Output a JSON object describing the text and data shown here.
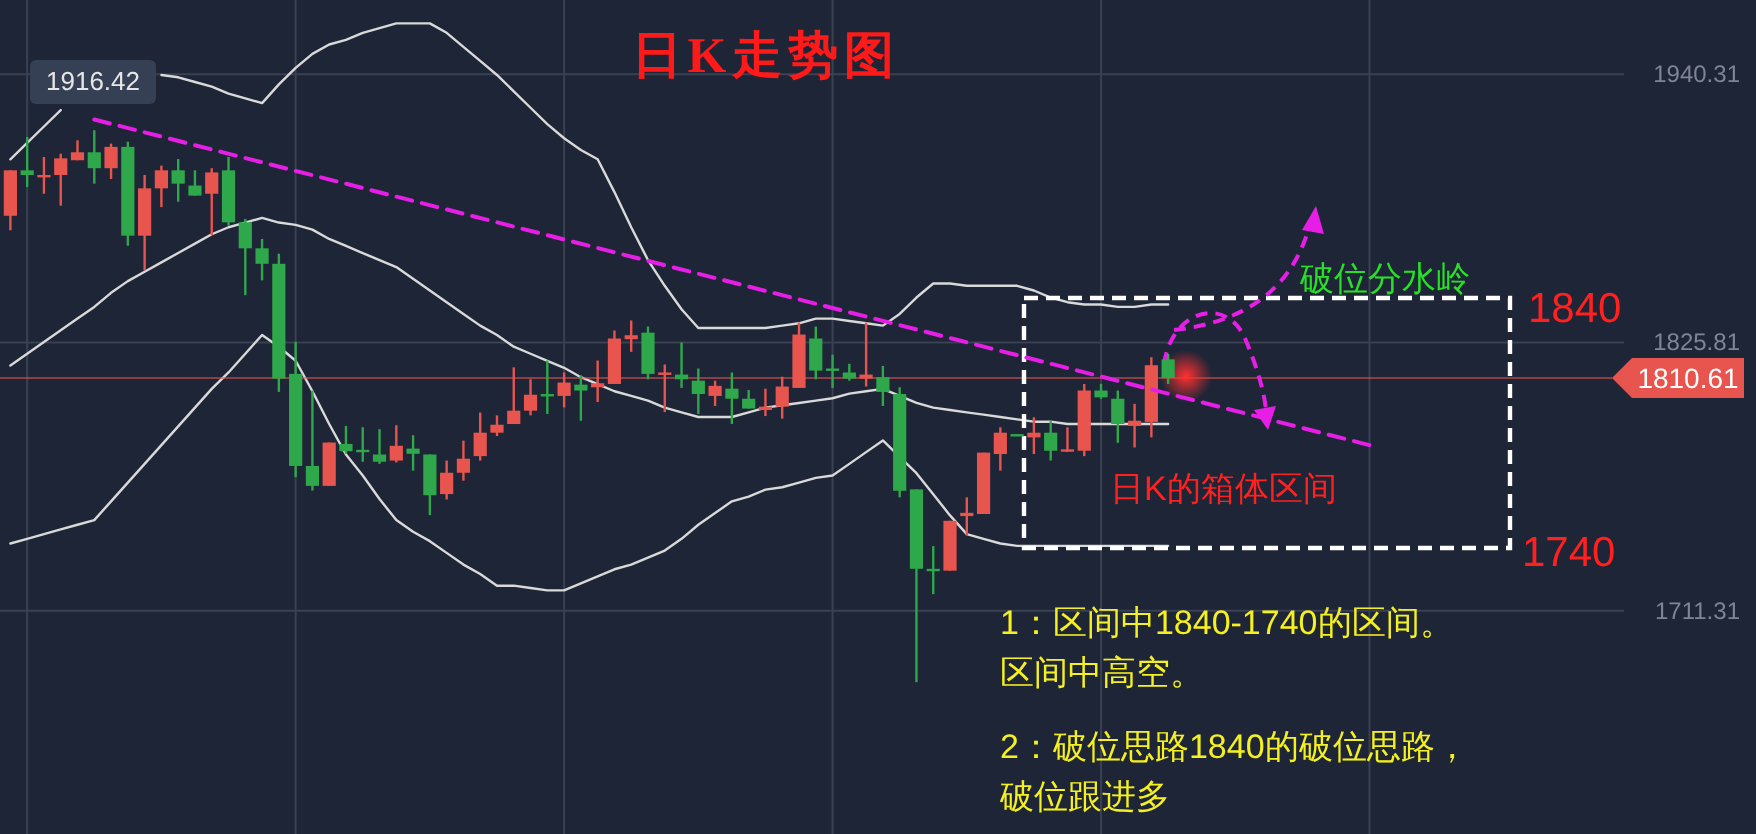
{
  "chart_data": {
    "type": "candlestick",
    "title": "日K走势图",
    "categories": [
      null,
      null,
      null,
      null,
      null,
      null,
      null,
      null,
      null,
      null,
      null,
      null,
      null,
      null,
      null,
      null,
      null,
      null,
      null,
      null,
      null,
      null,
      null,
      null,
      null,
      null,
      null,
      null,
      null,
      null,
      null,
      null,
      null,
      null,
      null,
      null,
      null,
      null,
      null,
      null,
      null,
      null,
      null,
      null,
      null,
      null,
      null,
      null,
      null,
      null,
      null,
      null,
      null,
      null,
      null,
      null,
      null,
      null,
      null,
      null,
      null,
      null,
      null,
      null,
      null,
      null,
      null,
      null,
      null,
      null,
      null,
      null,
      null,
      null,
      null,
      null,
      null,
      null,
      null,
      null,
      null,
      null,
      null,
      null,
      null,
      null,
      null,
      null,
      null,
      null,
      null,
      null,
      null,
      null,
      null
    ],
    "ohlc": [
      [
        1879.9,
        1899.3,
        1873.7,
        1899.3
      ],
      [
        1899.3,
        1913.5,
        1892.2,
        1897.3
      ],
      [
        1897.0,
        1905.0,
        1889.3,
        1897.3
      ],
      [
        1897.3,
        1906.4,
        1884.2,
        1904.4
      ],
      [
        1903.6,
        1912.1,
        1903.6,
        1907.0
      ],
      [
        1907.0,
        1916.4,
        1893.6,
        1900.2
      ],
      [
        1900.2,
        1910.7,
        1895.6,
        1909.3
      ],
      [
        1909.3,
        1911.5,
        1867.1,
        1871.4
      ],
      [
        1871.4,
        1897.3,
        1856.6,
        1891.6
      ],
      [
        1891.6,
        1901.3,
        1883.6,
        1899.3
      ],
      [
        1899.3,
        1904.1,
        1885.9,
        1893.6
      ],
      [
        1892.8,
        1899.3,
        1888.5,
        1888.5
      ],
      [
        1889.3,
        1900.2,
        1871.7,
        1898.4
      ],
      [
        1899.3,
        1905.0,
        1875.7,
        1877.1
      ],
      [
        1877.1,
        1878.5,
        1846.0,
        1866.0
      ],
      [
        1866.0,
        1870.0,
        1852.3,
        1859.4
      ],
      [
        1859.4,
        1863.7,
        1804.7,
        1810.4
      ],
      [
        1812.4,
        1826.1,
        1768.3,
        1773.1
      ],
      [
        1773.1,
        1805.3,
        1762.6,
        1764.6
      ],
      [
        1764.6,
        1783.1,
        1764.6,
        1783.1
      ],
      [
        1782.5,
        1790.2,
        1778.3,
        1779.4
      ],
      [
        1780.0,
        1789.6,
        1774.9,
        1779.4
      ],
      [
        1778.0,
        1788.8,
        1774.0,
        1774.9
      ],
      [
        1775.4,
        1790.5,
        1774.6,
        1781.7
      ],
      [
        1780.5,
        1786.2,
        1771.1,
        1778.3
      ],
      [
        1778.0,
        1778.0,
        1752.1,
        1760.6
      ],
      [
        1761.1,
        1775.4,
        1758.8,
        1770.2
      ],
      [
        1770.2,
        1783.9,
        1766.8,
        1776.2
      ],
      [
        1777.3,
        1795.9,
        1775.4,
        1787.3
      ],
      [
        1787.3,
        1794.7,
        1785.9,
        1790.7
      ],
      [
        1791.0,
        1815.2,
        1791.0,
        1796.7
      ],
      [
        1796.7,
        1810.1,
        1794.7,
        1803.5
      ],
      [
        1803.8,
        1818.1,
        1795.3,
        1803.0
      ],
      [
        1803.0,
        1813.0,
        1798.1,
        1808.7
      ],
      [
        1807.8,
        1811.8,
        1792.4,
        1805.3
      ],
      [
        1806.7,
        1818.1,
        1800.4,
        1808.4
      ],
      [
        1808.1,
        1830.9,
        1808.1,
        1827.5
      ],
      [
        1827.2,
        1835.2,
        1821.8,
        1828.9
      ],
      [
        1830.0,
        1832.6,
        1810.1,
        1812.4
      ],
      [
        1812.4,
        1816.4,
        1796.1,
        1813.0
      ],
      [
        1812.1,
        1825.8,
        1806.4,
        1810.1
      ],
      [
        1809.5,
        1814.7,
        1795.3,
        1803.8
      ],
      [
        1803.0,
        1809.5,
        1798.7,
        1807.3
      ],
      [
        1806.1,
        1813.0,
        1791.0,
        1801.8
      ],
      [
        1801.8,
        1805.5,
        1797.6,
        1797.6
      ],
      [
        1797.0,
        1806.1,
        1794.4,
        1798.4
      ],
      [
        1798.4,
        1811.2,
        1793.3,
        1807.0
      ],
      [
        1806.4,
        1834.3,
        1806.4,
        1829.2
      ],
      [
        1827.5,
        1832.6,
        1810.1,
        1813.8
      ],
      [
        1814.7,
        1820.6,
        1806.4,
        1814.4
      ],
      [
        1813.0,
        1816.7,
        1809.5,
        1810.4
      ],
      [
        1810.4,
        1834.3,
        1807.0,
        1812.1
      ],
      [
        1811.0,
        1815.8,
        1798.7,
        1804.7
      ],
      [
        1803.8,
        1806.7,
        1759.7,
        1762.5
      ],
      [
        1763.1,
        1763.1,
        1680.8,
        1729.2
      ],
      [
        1729.2,
        1738.9,
        1718.4,
        1728.6
      ],
      [
        1728.4,
        1749.7,
        1728.4,
        1749.7
      ],
      [
        1751.7,
        1759.7,
        1743.5,
        1753.1
      ],
      [
        1752.6,
        1778.8,
        1752.6,
        1778.8
      ],
      [
        1778.2,
        1789.6,
        1771.1,
        1787.3
      ],
      [
        1786.7,
        1786.7,
        1786.2,
        1786.2
      ],
      [
        1785.3,
        1793.9,
        1778.2,
        1787.3
      ],
      [
        1787.3,
        1792.4,
        1775.4,
        1779.6
      ],
      [
        1779.6,
        1789.6,
        1779.1,
        1780.2
      ],
      [
        1779.6,
        1808.1,
        1777.3,
        1805.3
      ],
      [
        1805.3,
        1808.1,
        1801.8,
        1802.4
      ],
      [
        1801.8,
        1805.3,
        1783.0,
        1791.0
      ],
      [
        1790.2,
        1799.6,
        1781.0,
        1792.4
      ],
      [
        1791.9,
        1819.5,
        1785.3,
        1816.1
      ],
      [
        1818.6,
        1820.9,
        1808.1,
        1810.61
      ],
      null,
      null,
      null,
      null,
      null,
      null,
      null,
      null,
      null,
      null,
      null,
      null,
      null,
      null,
      null,
      null,
      null,
      null,
      null,
      null,
      null,
      null,
      null,
      null,
      null
    ],
    "colors": [
      "#e8554e",
      "#2ea84a",
      "#e8554e",
      "#e8554e",
      "#e8554e",
      "#2ea84a",
      "#e8554e",
      "#2ea84a",
      "#e8554e",
      "#e8554e",
      "#2ea84a",
      "#2ea84a",
      "#e8554e",
      "#2ea84a",
      "#2ea84a",
      "#2ea84a",
      "#2ea84a",
      "#2ea84a",
      "#2ea84a",
      "#e8554e",
      "#2ea84a",
      "#2ea84a",
      "#2ea84a",
      "#e8554e",
      "#2ea84a",
      "#2ea84a",
      "#e8554e",
      "#e8554e",
      "#e8554e",
      "#e8554e",
      "#e8554e",
      "#e8554e",
      "#2ea84a",
      "#e8554e",
      "#2ea84a",
      "#e8554e",
      "#e8554e",
      "#e8554e",
      "#2ea84a",
      "#e8554e",
      "#2ea84a",
      "#2ea84a",
      "#e8554e",
      "#2ea84a",
      "#2ea84a",
      "#e8554e",
      "#e8554e",
      "#e8554e",
      "#2ea84a",
      "#2ea84a",
      "#2ea84a",
      "#e8554e",
      "#2ea84a",
      "#2ea84a",
      "#2ea84a",
      "#2ea84a",
      "#e8554e",
      "#e8554e",
      "#e8554e",
      "#e8554e",
      "#2ea84a",
      "#e8554e",
      "#2ea84a",
      "#e8554e",
      "#e8554e",
      "#2ea84a",
      "#2ea84a",
      "#e8554e",
      "#e8554e",
      "#2ea84a",
      null,
      null,
      null,
      null,
      null,
      null,
      null,
      null,
      null,
      null,
      null,
      null,
      null,
      null,
      null,
      null,
      null,
      null,
      null,
      null,
      null,
      null,
      null,
      null,
      null
    ],
    "series": [
      {
        "type": "line",
        "color": "#d9d9d9",
        "values": [
          1904,
          1911,
          1918,
          1925,
          null,
          null,
          null,
          null,
          null,
          1940,
          1939,
          1937,
          1935,
          1932,
          1930,
          1928,
          1936,
          1943,
          1949,
          1953,
          1955,
          1958,
          1960,
          1962,
          1962,
          1962,
          1958,
          1952,
          1946,
          1940,
          1933,
          1926,
          1919,
          1913,
          1908,
          1904,
          1890,
          1875,
          1861,
          1850,
          1840,
          1832,
          1832,
          1832,
          1832,
          1832,
          1833,
          1834,
          1836,
          1836,
          1835,
          1834,
          1833,
          1838,
          1845,
          1851,
          1851,
          1850,
          1850,
          1850,
          1850,
          1848,
          1845,
          1843,
          1842,
          1842,
          1841,
          1841,
          1842,
          1842,
          null,
          null,
          null,
          null,
          null,
          null,
          null,
          null,
          null,
          null,
          null,
          null,
          null,
          null,
          null,
          null,
          null,
          null,
          null,
          null,
          null,
          null,
          null,
          null,
          null
        ]
      },
      {
        "type": "line",
        "color": "#d9d9d9",
        "values": [
          1816,
          1821,
          1826,
          1831,
          1836,
          1841,
          1847,
          1852,
          1856,
          1860,
          1864,
          1868,
          1872,
          1875,
          1877,
          1879,
          1877,
          1876,
          1874,
          1870,
          1867,
          1864,
          1861,
          1858,
          1853,
          1848,
          1843,
          1838,
          1833,
          1829,
          1824,
          1821,
          1818,
          1815,
          1811,
          1808,
          1805,
          1803,
          1801,
          1798,
          1796,
          1794,
          1794,
          1794,
          1796,
          1798,
          1799,
          1800,
          1801,
          1802,
          1804,
          1805,
          1806,
          1803,
          1800,
          1798,
          1797,
          1796,
          1795,
          1794,
          1793,
          1792,
          1792,
          1791,
          1791,
          1791,
          1791,
          1791,
          1791,
          1791,
          null,
          null,
          null,
          null,
          null,
          null,
          null,
          null,
          null,
          null,
          null,
          null,
          null,
          null,
          null,
          null,
          null,
          null,
          null,
          null,
          null,
          null,
          null,
          null,
          null
        ]
      },
      {
        "type": "line",
        "color": "#d9d9d9",
        "values": [
          1740,
          1742,
          1744,
          1746,
          1748,
          1750,
          1758,
          1766,
          1774,
          1782,
          1790,
          1798,
          1806,
          1813,
          1821,
          1829,
          1824,
          1818,
          1805,
          1791,
          1778,
          1769,
          1759,
          1750,
          1745,
          1741,
          1736,
          1731,
          1727,
          1722,
          1722,
          1721,
          1720,
          1720,
          1723,
          1726,
          1729,
          1731,
          1734,
          1737,
          1742,
          1748,
          1753,
          1758,
          1760,
          1763,
          1764,
          1766,
          1768,
          1769,
          1774,
          1779,
          1784,
          1777,
          1770,
          1761,
          1752,
          1744,
          1742,
          1740,
          1739,
          1739,
          1739,
          1739,
          1739,
          1739,
          1739,
          1739,
          1739,
          1739,
          null,
          null,
          null,
          null,
          null,
          null,
          null,
          null,
          null,
          null,
          null,
          null,
          null,
          null,
          null,
          null,
          null,
          null,
          null,
          null,
          null,
          null,
          null,
          null,
          null
        ]
      },
      {
        "type": "line",
        "color": "#e61ee6",
        "line_style": "dashed",
        "values": [
          null,
          null,
          null,
          null,
          null,
          1921,
          null,
          null,
          null,
          null,
          null,
          null,
          null,
          null,
          null,
          null,
          null,
          null,
          null,
          null,
          null,
          null,
          null,
          null,
          null,
          null,
          null,
          null,
          null,
          null,
          null,
          null,
          null,
          null,
          null,
          null,
          null,
          null,
          null,
          null,
          null,
          null,
          null,
          null,
          null,
          null,
          null,
          null,
          null,
          null,
          null,
          null,
          null,
          null,
          null,
          null,
          null,
          null,
          null,
          null,
          null,
          null,
          null,
          null,
          null,
          null,
          null,
          null,
          null,
          null,
          null,
          null,
          null,
          null,
          null,
          null,
          null,
          null,
          null,
          null,
          null,
          1782,
          null,
          null,
          null,
          null,
          null,
          null,
          null,
          null,
          null,
          null,
          null,
          null,
          null
        ]
      }
    ],
    "ylim": [
      1616,
      1972
    ],
    "yticks": [
      1711.31,
      1825.81,
      1940.31
    ],
    "tick_labels": "y",
    "grid": true,
    "ref_lines": [
      {
        "axis": "y",
        "value": 1810.61,
        "label": "1810.61",
        "color": "#e8554e"
      }
    ],
    "annotations": [
      "1916.42",
      "破位分水岭",
      "1840",
      "1740",
      "日K的箱体区间",
      "1：区间中1840-1740的区间。区间中高空。",
      "2：破位思路1840的破位思路，破位跟进多"
    ]
  }
}
